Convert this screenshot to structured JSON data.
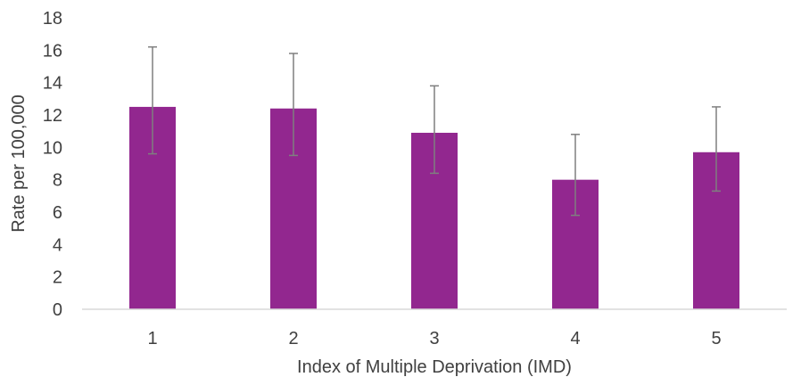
{
  "chart_data": {
    "type": "bar",
    "categories": [
      "1",
      "2",
      "3",
      "4",
      "5"
    ],
    "values": [
      12.5,
      12.4,
      10.9,
      8.0,
      9.7
    ],
    "error_low": [
      9.6,
      9.5,
      8.4,
      5.8,
      7.3
    ],
    "error_high": [
      16.2,
      15.8,
      13.8,
      10.8,
      12.5
    ],
    "xlabel": "Index of Multiple Deprivation (IMD)",
    "ylabel": "Rate per 100,000",
    "ylim": [
      0,
      18
    ],
    "yticks": [
      "0",
      "2",
      "4",
      "6",
      "8",
      "10",
      "12",
      "14",
      "16",
      "18"
    ],
    "grid": false,
    "legend": "none",
    "colors": {
      "bar": "#92278f",
      "error_bar": "#7f7f7f",
      "axis": "#d9d9d9",
      "text": "#404040"
    }
  }
}
